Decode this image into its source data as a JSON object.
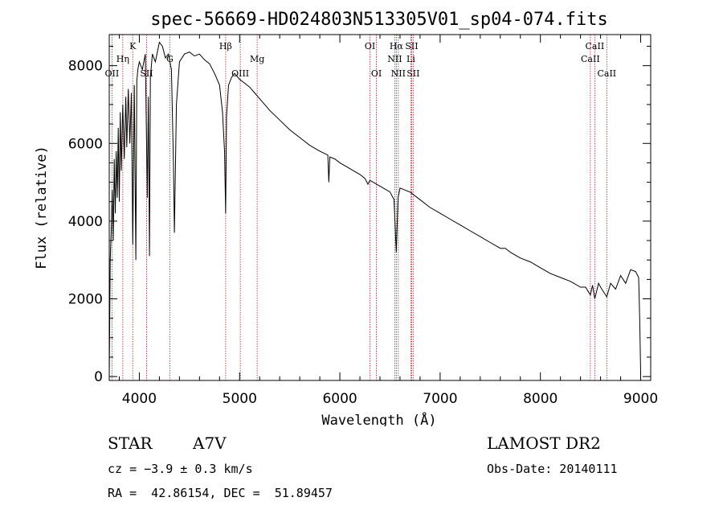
{
  "chart_data": {
    "type": "line",
    "title": "spec-56669-HD024803N513305V01_sp04-074.fits",
    "xlabel": "Wavelength (Å)",
    "ylabel": "Flux (relative)",
    "xlim": [
      3700,
      9100
    ],
    "ylim": [
      -100,
      8800
    ],
    "x_ticks": [
      4000,
      5000,
      6000,
      7000,
      8000,
      9000
    ],
    "y_ticks": [
      0,
      2000,
      4000,
      6000,
      8000
    ],
    "grid": false,
    "series": [
      {
        "x": [
          3700,
          3710,
          3720,
          3730,
          3740,
          3750,
          3760,
          3770,
          3780,
          3790,
          3800,
          3810,
          3820,
          3835,
          3850,
          3865,
          3875,
          3890,
          3905,
          3920,
          3935,
          3950,
          3965,
          3975,
          3985,
          4000,
          4030,
          4060,
          4080,
          4090,
          4101,
          4110,
          4130,
          4160,
          4200,
          4230,
          4260,
          4290,
          4320,
          4340,
          4350,
          4370,
          4400,
          4450,
          4500,
          4550,
          4600,
          4650,
          4700,
          4750,
          4800,
          4830,
          4850,
          4861,
          4870,
          4890,
          4920,
          4950,
          5000,
          5050,
          5100,
          5150,
          5200,
          5300,
          5400,
          5500,
          5600,
          5700,
          5800,
          5880,
          5890,
          5900,
          5950,
          6000,
          6100,
          6200,
          6250,
          6280,
          6300,
          6400,
          6500,
          6540,
          6563,
          6580,
          6600,
          6650,
          6700,
          6800,
          6900,
          7000,
          7100,
          7200,
          7300,
          7400,
          7500,
          7600,
          7650,
          7700,
          7800,
          7900,
          8000,
          8100,
          8200,
          8300,
          8400,
          8450,
          8498,
          8520,
          8542,
          8580,
          8600,
          8662,
          8700,
          8750,
          8800,
          8850,
          8900,
          8950,
          8980,
          8990,
          9000
        ],
        "y": [
          0,
          3000,
          3800,
          4800,
          3500,
          5600,
          4200,
          5800,
          4600,
          6400,
          4500,
          6800,
          5300,
          7000,
          5600,
          7200,
          5900,
          7400,
          6000,
          7300,
          3400,
          7500,
          3000,
          7600,
          7900,
          8100,
          7900,
          8300,
          4600,
          7200,
          3100,
          7700,
          8300,
          8100,
          8600,
          8500,
          8200,
          8300,
          7900,
          5500,
          3700,
          7000,
          8100,
          8300,
          8350,
          8250,
          8300,
          8150,
          8050,
          7800,
          7500,
          6800,
          5800,
          4200,
          6700,
          7500,
          7700,
          7800,
          7650,
          7550,
          7450,
          7300,
          7150,
          6850,
          6600,
          6350,
          6150,
          5950,
          5800,
          5700,
          5000,
          5650,
          5600,
          5500,
          5350,
          5200,
          5100,
          4950,
          5050,
          4900,
          4750,
          4550,
          3200,
          4600,
          4850,
          4800,
          4750,
          4550,
          4350,
          4200,
          4050,
          3900,
          3750,
          3600,
          3450,
          3300,
          3300,
          3200,
          3050,
          2950,
          2800,
          2650,
          2550,
          2450,
          2300,
          2300,
          2100,
          2350,
          2000,
          2400,
          2300,
          2050,
          2400,
          2250,
          2600,
          2400,
          2750,
          2700,
          2550,
          1500,
          100
        ]
      }
    ],
    "spectral_lines": [
      {
        "label": "OII",
        "x": 3727,
        "row": 3
      },
      {
        "label": "Hη",
        "x": 3835,
        "row": 2
      },
      {
        "label": "K",
        "x": 3934,
        "row": 1
      },
      {
        "label": "SII",
        "x": 4072,
        "row": 3
      },
      {
        "label": "G",
        "x": 4304,
        "row": 2
      },
      {
        "label": "Hβ",
        "x": 4861,
        "row": 1
      },
      {
        "label": "OIII",
        "x": 5007,
        "row": 3
      },
      {
        "label": "Mg",
        "x": 5175,
        "row": 2
      },
      {
        "label": "OI",
        "x": 6300,
        "row": 1
      },
      {
        "label": "OI",
        "x": 6364,
        "row": 3
      },
      {
        "label": "Hα",
        "x": 6563,
        "row": 1
      },
      {
        "label": "NII",
        "x": 6548,
        "row": 2
      },
      {
        "label": "NII",
        "x": 6583,
        "row": 3
      },
      {
        "label": "SII",
        "x": 6716,
        "row": 1
      },
      {
        "label": "Li",
        "x": 6708,
        "row": 2
      },
      {
        "label": "SII",
        "x": 6731,
        "row": 3
      },
      {
        "label": "CaII",
        "x": 8498,
        "row": 2
      },
      {
        "label": "CaII",
        "x": 8542,
        "row": 1
      },
      {
        "label": "CaII",
        "x": 8662,
        "row": 3
      }
    ]
  },
  "info": {
    "class": "STAR",
    "subclass": "A7V",
    "cz": "cz = −3.9 ± 0.3 km/s",
    "radec": "RA =  42.86154, DEC =  51.89457",
    "survey": "LAMOST DR2",
    "obsdate": "Obs-Date: 20140111"
  }
}
